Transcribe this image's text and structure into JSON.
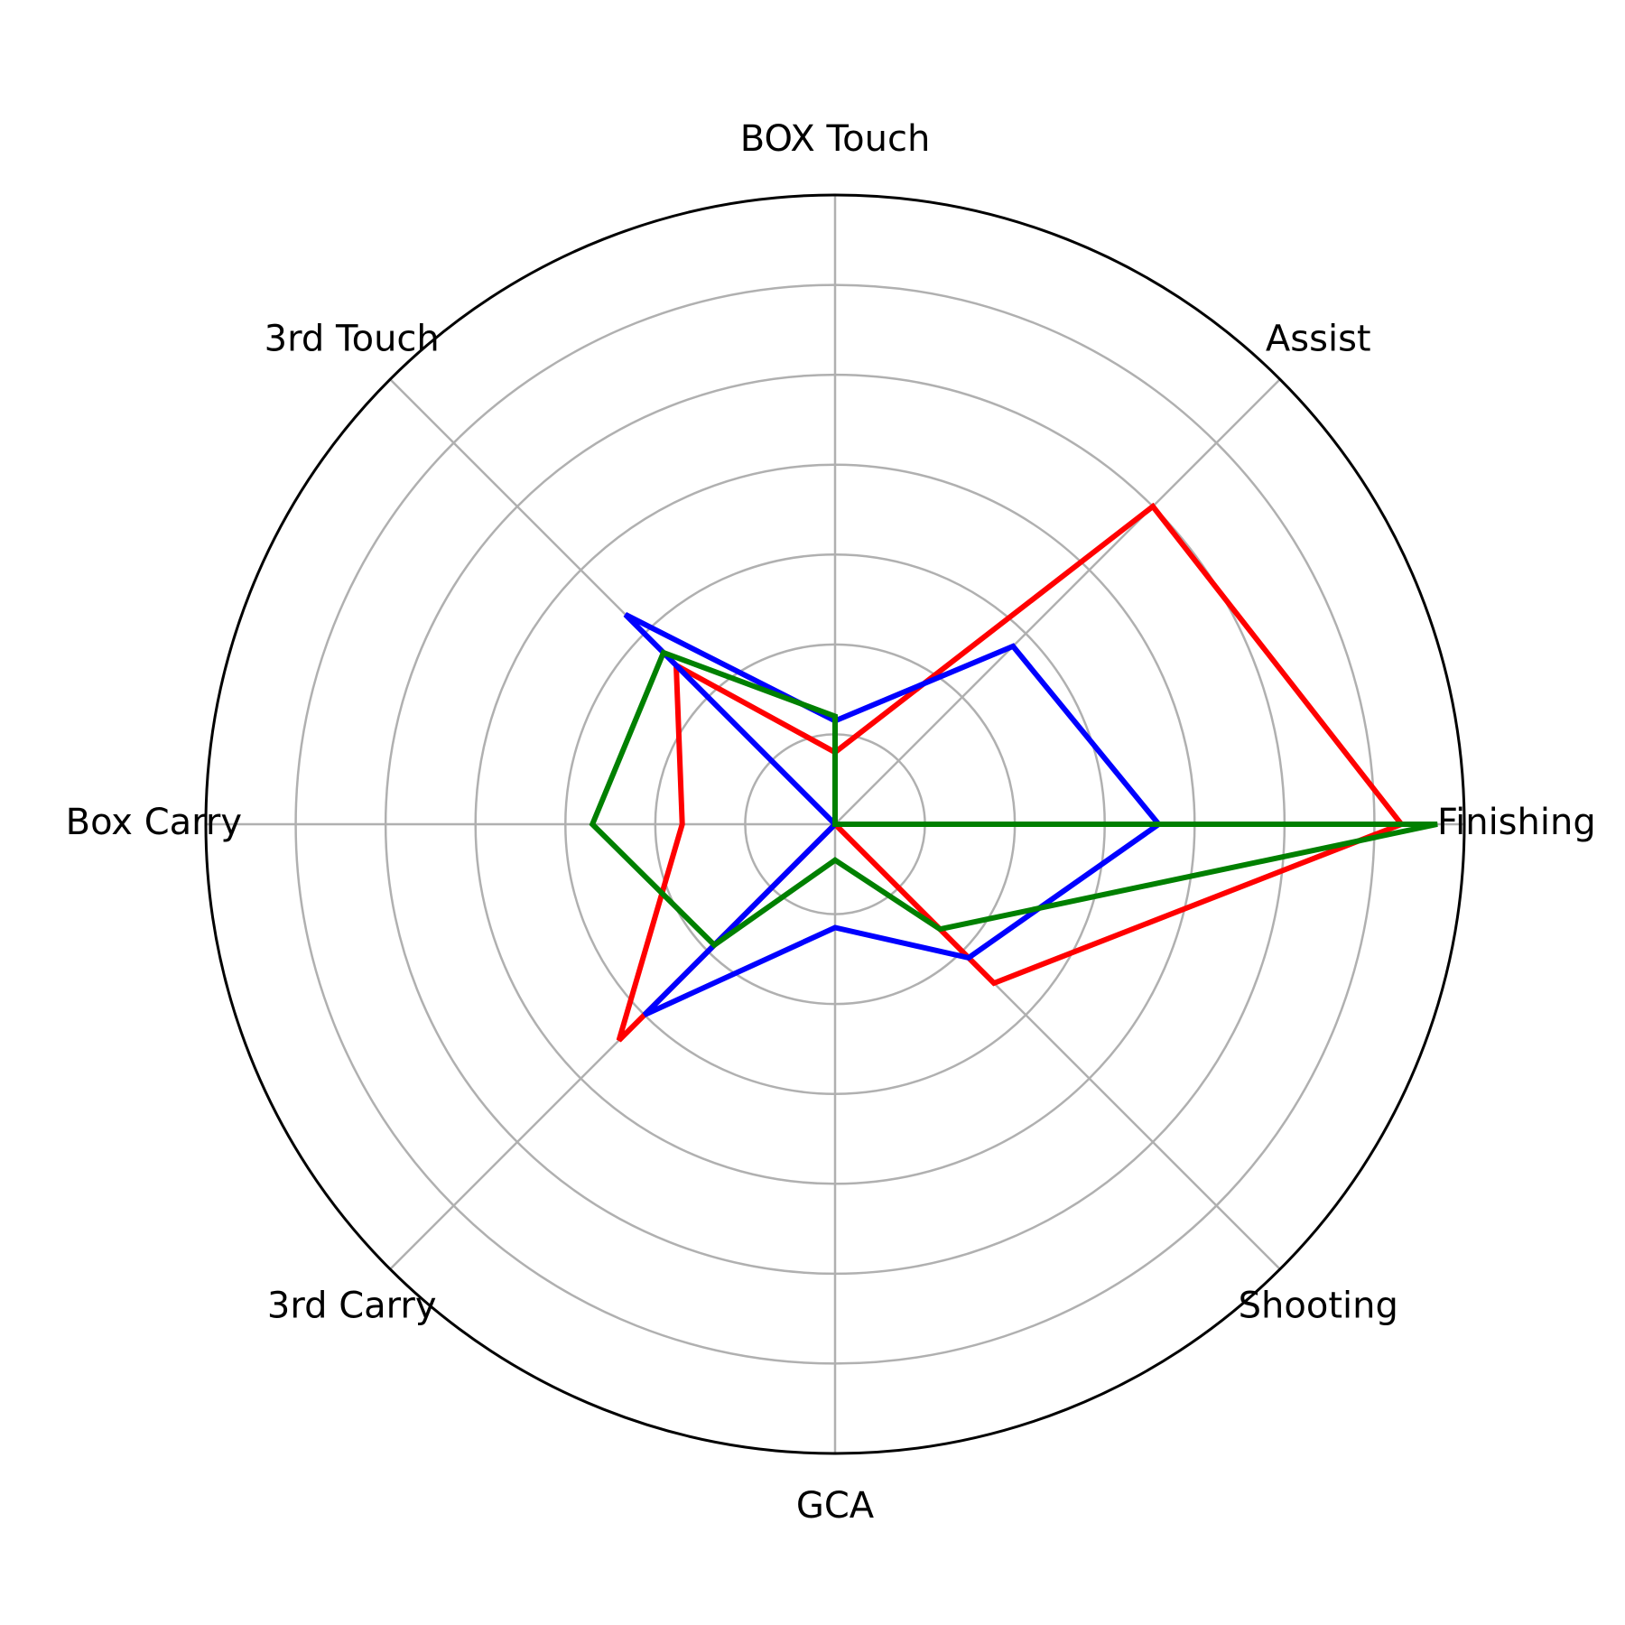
{
  "chart_data": {
    "type": "radar",
    "title": "",
    "categories": [
      "Finishing",
      "Assist",
      "BOX Touch",
      "3rd Touch",
      "Box Carry",
      "3rd Carry",
      "GCA",
      "Shooting"
    ],
    "rmax": 7,
    "rticks": [
      1,
      2,
      3,
      4,
      5,
      6,
      7
    ],
    "grid": true,
    "series": [
      {
        "color": "#ff0000",
        "values": [
          6.3,
          5.0,
          0.8,
          2.5,
          1.7,
          3.4,
          0.0,
          2.5
        ]
      },
      {
        "color": "#0000ff",
        "values": [
          3.6,
          2.8,
          1.15,
          3.3,
          0.0,
          3.0,
          1.15,
          2.1
        ]
      },
      {
        "color": "#008000",
        "values": [
          6.7,
          0.0,
          1.2,
          2.7,
          2.7,
          1.9,
          0.4,
          1.65
        ]
      }
    ]
  }
}
